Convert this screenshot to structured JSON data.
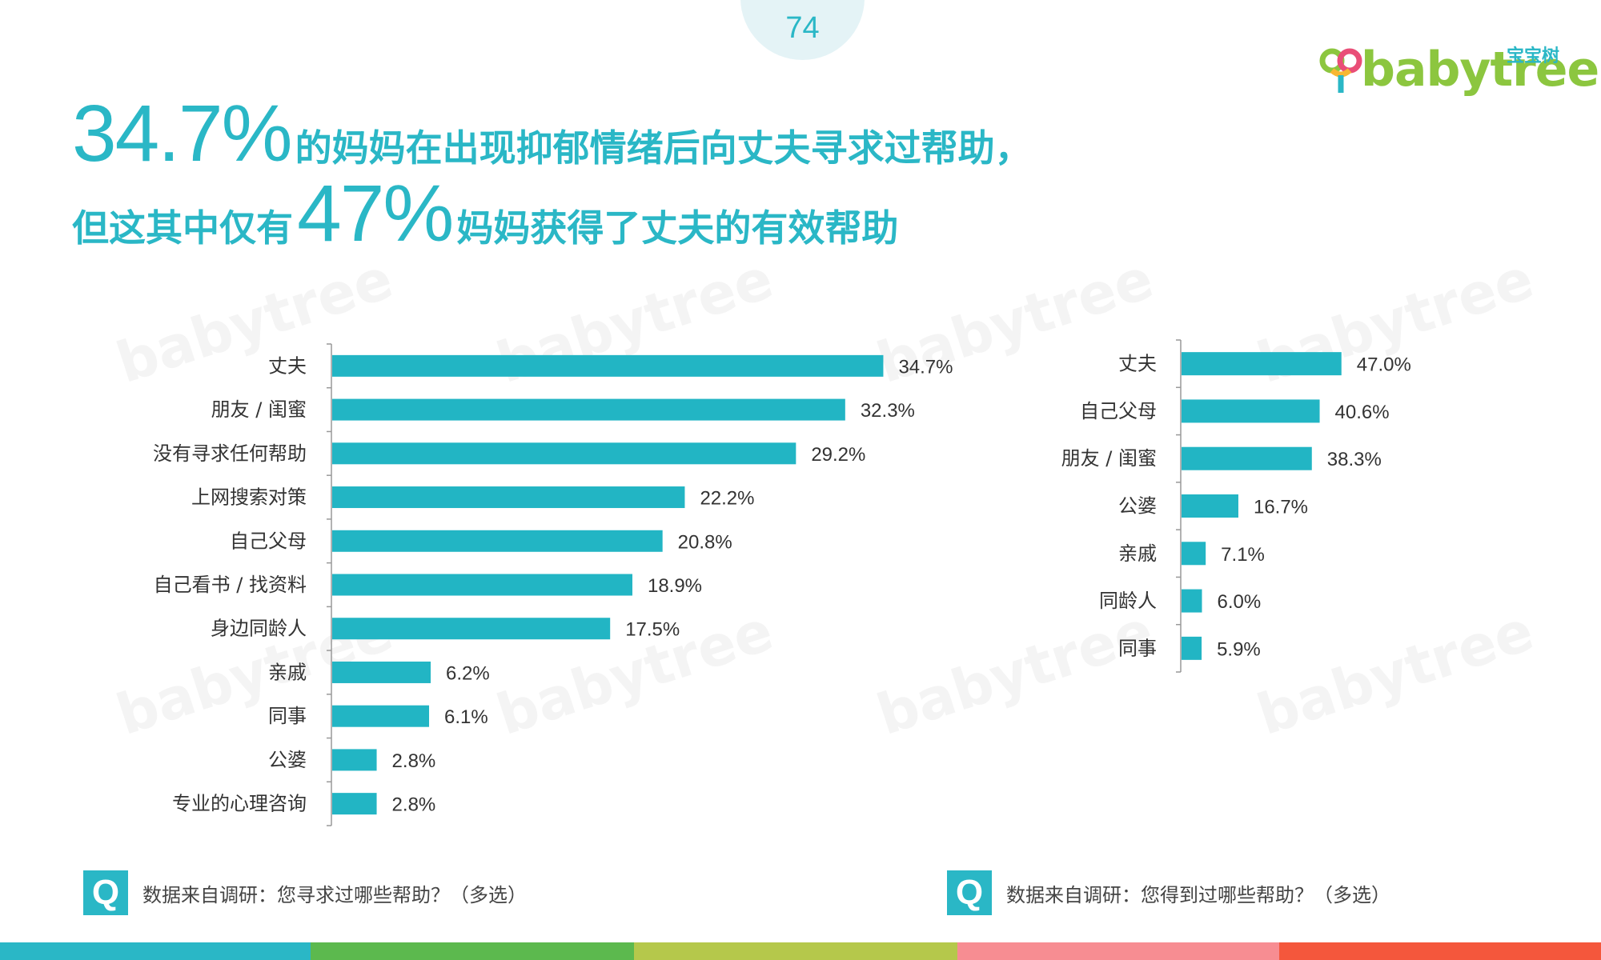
{
  "page_number": "74",
  "logo": {
    "cn": "宝宝树",
    "word": "babytree"
  },
  "headline": {
    "line1_big": "34.7%",
    "line1_text": "的妈妈在出现抑郁情绪后向丈夫寻求过帮助，",
    "line2_text_a": "但这其中仅有",
    "line2_big": "47%",
    "line2_text_b": "妈妈获得了丈夫的有效帮助"
  },
  "colors": {
    "accent": "#2ab7c6",
    "bar": "#22b5c4",
    "footer": [
      "#2ab7c6",
      "#5cb94e",
      "#b5c84b",
      "#f78d92",
      "#f4573c"
    ]
  },
  "chart_data": [
    {
      "type": "bar",
      "orientation": "horizontal",
      "categories": [
        "丈夫",
        "朋友 / 闺蜜",
        "没有寻求任何帮助",
        "上网搜索对策",
        "自己父母",
        "自己看书 / 找资料",
        "身边同龄人",
        "亲戚",
        "同事",
        "公婆",
        "专业的心理咨询"
      ],
      "values": [
        34.7,
        32.3,
        29.2,
        22.2,
        20.8,
        18.9,
        17.5,
        6.2,
        6.1,
        2.8,
        2.8
      ],
      "labels": [
        "34.7%",
        "32.3%",
        "29.2%",
        "22.2%",
        "20.8%",
        "18.9%",
        "17.5%",
        "6.2%",
        "6.1%",
        "2.8%",
        "2.8%"
      ],
      "xlim": [
        0,
        40
      ],
      "grid": false
    },
    {
      "type": "bar",
      "orientation": "horizontal",
      "categories": [
        "丈夫",
        "自己父母",
        "朋友 / 闺蜜",
        "公婆",
        "亲戚",
        "同龄人",
        "同事"
      ],
      "values": [
        47.0,
        40.6,
        38.3,
        16.7,
        7.1,
        6.0,
        5.9
      ],
      "labels": [
        "47.0%",
        "40.6%",
        "38.3%",
        "16.7%",
        "7.1%",
        "6.0%",
        "5.9%"
      ],
      "xlim": [
        0,
        100
      ],
      "grid": false
    }
  ],
  "footnotes": [
    {
      "icon": "Q",
      "text": "数据来自调研：您寻求过哪些帮助？（多选）"
    },
    {
      "icon": "Q",
      "text": "数据来自调研：您得到过哪些帮助？（多选）"
    }
  ],
  "watermark": "babytree"
}
